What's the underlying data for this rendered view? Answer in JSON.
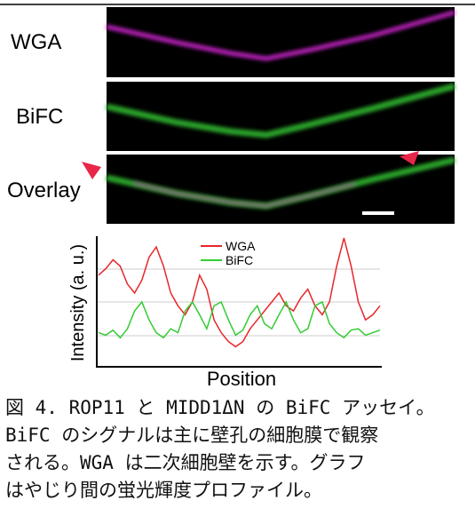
{
  "figure": {
    "panels": [
      {
        "label": "WGA"
      },
      {
        "label": "BiFC"
      },
      {
        "label": "Overlay"
      }
    ]
  },
  "chart_data": {
    "type": "line",
    "ylabel": "Intensity (a. u.)",
    "xlabel": "Position",
    "ylim": [
      0,
      100
    ],
    "series": [
      {
        "name": "WGA",
        "color": "#e8262b",
        "values": [
          71,
          76,
          83,
          78,
          64,
          57,
          67,
          85,
          93,
          78,
          57,
          47,
          40,
          50,
          71,
          60,
          36,
          26,
          19,
          15,
          19,
          29,
          36,
          43,
          50,
          57,
          47,
          43,
          53,
          60,
          47,
          40,
          50,
          78,
          100,
          78,
          50,
          36,
          40,
          47
        ]
      },
      {
        "name": "BiFC",
        "color": "#33cc33",
        "values": [
          26,
          24,
          28,
          22,
          29,
          43,
          50,
          36,
          26,
          22,
          29,
          26,
          43,
          50,
          40,
          29,
          47,
          50,
          36,
          24,
          28,
          40,
          47,
          33,
          29,
          40,
          50,
          36,
          26,
          29,
          47,
          50,
          33,
          26,
          22,
          28,
          29,
          24,
          26,
          28
        ]
      }
    ]
  },
  "caption": {
    "lines": [
      "図 4. ROP11 と MIDD1ΔN の BiFC アッセイ。",
      "BiFC のシグナルは主に壁孔の細胞膜で観察",
      "される。WGA は二次細胞壁を示す。グラフ",
      "はやじり間の蛍光輝度プロファイル。"
    ]
  }
}
